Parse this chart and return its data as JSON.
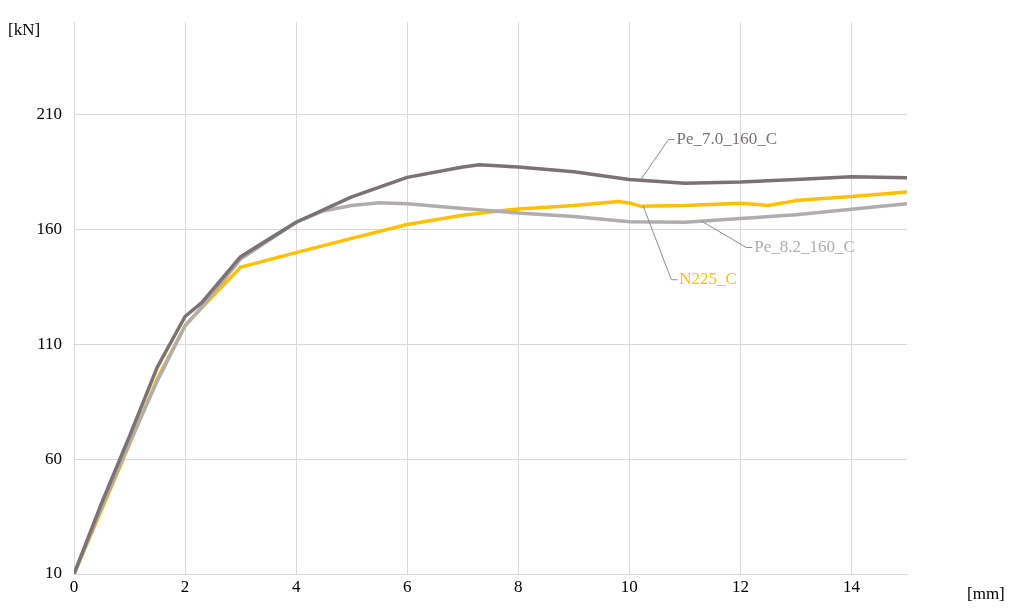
{
  "chart_data": {
    "type": "line",
    "xlabel": "[mm]",
    "ylabel": "[kN]",
    "xlim": [
      0,
      15
    ],
    "xticks": [
      0,
      2,
      4,
      6,
      8,
      10,
      12,
      14
    ],
    "ylim": [
      10,
      250
    ],
    "yticks": [
      10,
      60,
      110,
      160,
      210
    ],
    "grid": true,
    "legend": false,
    "marker": "none",
    "line_style": "solid",
    "series": [
      {
        "name": "Pe_7.0_160_C",
        "color": "#7a7274",
        "x": [
          0,
          0.5,
          1,
          1.5,
          2,
          2.3,
          3,
          4,
          5,
          6,
          7,
          7.3,
          8,
          9,
          10,
          11,
          12,
          13,
          14,
          15
        ],
        "values": [
          10,
          41,
          70,
          100,
          122,
          128,
          148,
          163,
          174,
          182.5,
          187,
          188,
          187,
          185,
          181.6,
          180,
          180.5,
          181.6,
          182.8,
          182.3
        ]
      },
      {
        "name": "Pe_8.2_160_C",
        "color": "#b1adae",
        "x": [
          0,
          0.5,
          1,
          1.5,
          2,
          2.3,
          3,
          4,
          4.5,
          5,
          5.5,
          6,
          7,
          8,
          9,
          10,
          11,
          12,
          13,
          14,
          15
        ],
        "values": [
          10,
          39,
          67,
          94,
          118,
          126,
          147,
          163,
          168,
          170.3,
          171.5,
          171,
          169,
          167,
          165.5,
          163.2,
          163,
          164.6,
          166.3,
          168.6,
          171
        ]
      },
      {
        "name": "N225_C",
        "color": "#ffc000",
        "x": [
          0,
          0.5,
          1,
          1.5,
          2,
          2.27,
          3,
          4,
          5,
          6,
          7,
          8,
          9,
          9.8,
          10,
          10.2,
          11,
          12,
          12.5,
          13,
          14,
          15
        ],
        "values": [
          10,
          38,
          null,
          95,
          118,
          125,
          143.4,
          149.8,
          156,
          162,
          166,
          168.8,
          170.3,
          172,
          171.4,
          170,
          170.3,
          171.3,
          170.3,
          172.4,
          174.2,
          176.2
        ]
      }
    ]
  }
}
